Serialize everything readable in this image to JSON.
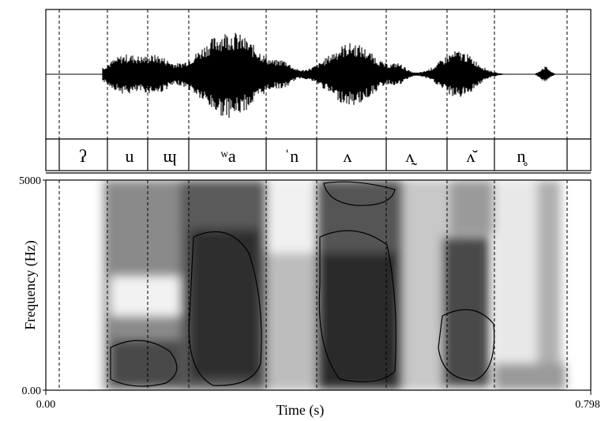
{
  "waveform": {},
  "segments": [
    "ʔ",
    "u",
    "ɰ",
    "ʷa",
    "ˈn",
    "ʌ",
    "ʌ̰",
    "ʌ̆",
    "n̥"
  ],
  "spectrogram": {
    "y_top_label": "5000",
    "y_bottom_label": "0.00",
    "ylabel": "Frequency (Hz)"
  },
  "time_axis": {
    "start_label": "0.00",
    "end_label": "0.798",
    "xlabel": "Time (s)"
  }
}
